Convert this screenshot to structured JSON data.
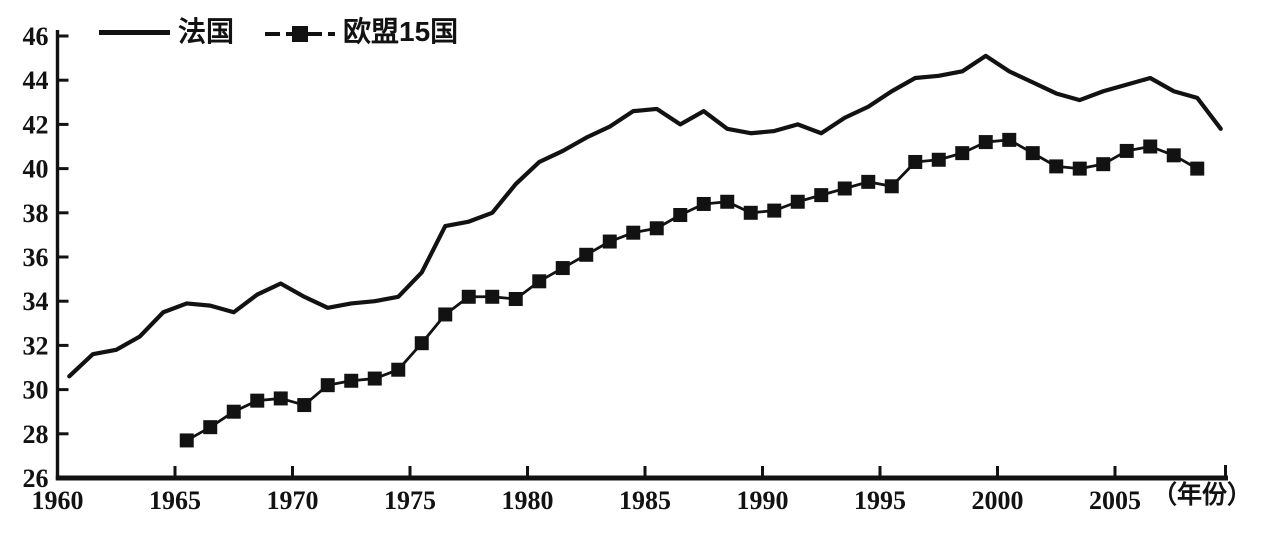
{
  "figure": {
    "background": "#ffffff",
    "ink": "#121212"
  },
  "legend": {
    "position": "top-left",
    "items": [
      {
        "label": "法国",
        "sample": "solid-line"
      },
      {
        "label": "欧盟15国",
        "sample": "line-with-filled-square-marker"
      }
    ]
  },
  "x_axis": {
    "unit_label": "（年份）"
  },
  "chart_data": {
    "type": "line",
    "title": "",
    "xlabel": "年份",
    "ylabel": "",
    "xlim": [
      1960,
      2010
    ],
    "ylim": [
      26,
      46
    ],
    "grid": false,
    "legend_position": "top-left",
    "x_ticks": [
      1960,
      1965,
      1970,
      1975,
      1980,
      1985,
      1990,
      1995,
      2000,
      2005
    ],
    "y_ticks": [
      26,
      28,
      30,
      32,
      34,
      36,
      38,
      40,
      42,
      44,
      46
    ],
    "series": [
      {
        "name": "法国",
        "line": "solid",
        "marker": "none",
        "years": [
          1960,
          1961,
          1962,
          1963,
          1964,
          1965,
          1966,
          1967,
          1968,
          1969,
          1970,
          1971,
          1972,
          1973,
          1974,
          1975,
          1976,
          1977,
          1978,
          1979,
          1980,
          1981,
          1982,
          1983,
          1984,
          1985,
          1986,
          1987,
          1988,
          1989,
          1990,
          1991,
          1992,
          1993,
          1994,
          1995,
          1996,
          1997,
          1998,
          1999,
          2000,
          2001,
          2002,
          2003,
          2004,
          2005,
          2006,
          2007,
          2008,
          2009
        ],
        "values": [
          30.6,
          31.6,
          31.8,
          32.4,
          33.5,
          33.9,
          33.8,
          33.5,
          34.3,
          34.8,
          34.2,
          33.7,
          33.9,
          34.0,
          34.2,
          35.3,
          37.4,
          37.6,
          38.0,
          39.3,
          40.3,
          40.8,
          41.4,
          41.9,
          42.6,
          42.7,
          42.0,
          42.6,
          41.8,
          41.6,
          41.7,
          42.0,
          41.6,
          42.3,
          42.8,
          43.5,
          44.1,
          44.2,
          44.4,
          45.1,
          44.4,
          43.9,
          43.4,
          43.1,
          43.5,
          43.8,
          44.1,
          43.5,
          43.2,
          41.8
        ]
      },
      {
        "name": "欧盟15国",
        "line": "solid",
        "marker": "filled-square",
        "years": [
          1965,
          1966,
          1967,
          1968,
          1969,
          1970,
          1971,
          1972,
          1973,
          1974,
          1975,
          1976,
          1977,
          1978,
          1979,
          1980,
          1981,
          1982,
          1983,
          1984,
          1985,
          1986,
          1987,
          1988,
          1989,
          1990,
          1991,
          1992,
          1993,
          1994,
          1995,
          1996,
          1997,
          1998,
          1999,
          2000,
          2001,
          2002,
          2003,
          2004,
          2005,
          2006,
          2007,
          2008
        ],
        "values": [
          27.7,
          28.3,
          29.0,
          29.5,
          29.6,
          29.3,
          30.2,
          30.4,
          30.5,
          30.9,
          32.1,
          33.4,
          34.2,
          34.2,
          34.1,
          34.9,
          35.5,
          36.1,
          36.7,
          37.1,
          37.3,
          37.9,
          38.4,
          38.5,
          38.0,
          38.1,
          38.5,
          38.8,
          39.1,
          39.4,
          39.2,
          40.3,
          40.4,
          40.7,
          41.2,
          41.3,
          40.7,
          40.1,
          40.0,
          40.2,
          40.8,
          41.0,
          40.6,
          40.0
        ]
      }
    ]
  }
}
